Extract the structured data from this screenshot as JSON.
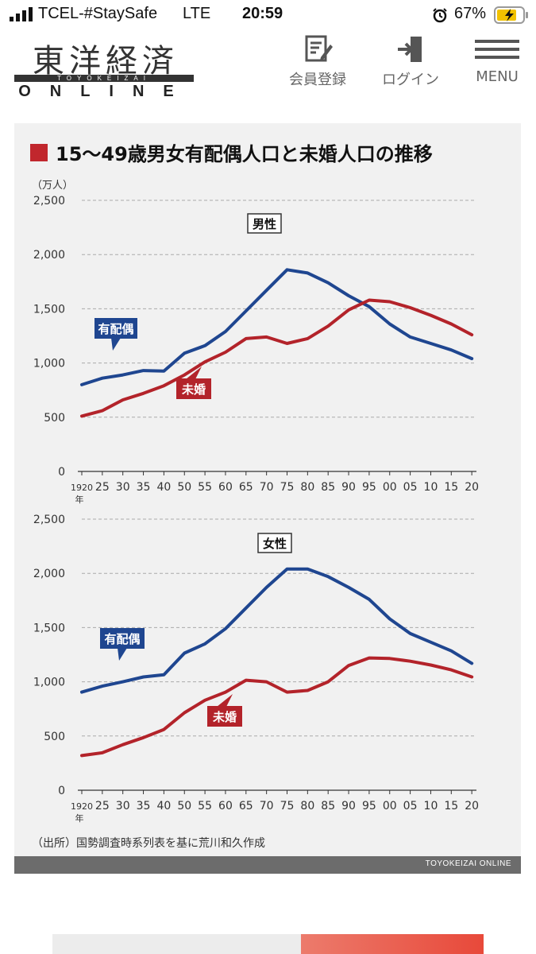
{
  "status_bar": {
    "carrier": "TCEL-#StaySafe",
    "network": "LTE",
    "time": "20:59",
    "battery": "67%"
  },
  "header": {
    "logo_kanji": "東洋経済",
    "logo_sub": "TOYOKEIZAI",
    "logo_online": "ONLINE",
    "register_label": "会員登録",
    "login_label": "ログイン",
    "menu_label": "MENU"
  },
  "colors": {
    "accent": "#c1272d",
    "married": "#1f4690",
    "unmarried": "#b3232a"
  },
  "chart_data": {
    "type": "line",
    "title": "15〜49歳男女有配偶人口と未婚人口の推移",
    "ylabel": "（万人）",
    "source": "（出所）国勢調査時系列表を基に荒川和久作成",
    "credit": "TOYOKEIZAI ONLINE",
    "x_tick_labels": [
      "1920",
      "25",
      "30",
      "35",
      "40",
      "50",
      "55",
      "60",
      "65",
      "70",
      "75",
      "80",
      "85",
      "90",
      "95",
      "00",
      "05",
      "10",
      "15",
      "20"
    ],
    "x_suffix": "年",
    "y_ticks": [
      "0",
      "500",
      "1,000",
      "1,500",
      "2,000",
      "2,500"
    ],
    "ylim": [
      0,
      2500
    ],
    "panels": [
      {
        "label": "男性",
        "series": [
          {
            "name": "有配偶",
            "values": [
              800,
              860,
              890,
              930,
              925,
              1090,
              1160,
              1290,
              1480,
              1670,
              1860,
              1830,
              1740,
              1620,
              1520,
              1360,
              1240,
              1180,
              1120,
              1040
            ]
          },
          {
            "name": "未婚",
            "values": [
              510,
              560,
              660,
              720,
              790,
              890,
              1010,
              1100,
              1225,
              1240,
              1180,
              1225,
              1340,
              1490,
              1580,
              1565,
              1510,
              1440,
              1360,
              1260
            ]
          }
        ]
      },
      {
        "label": "女性",
        "series": [
          {
            "name": "有配偶",
            "values": [
              905,
              960,
              1000,
              1045,
              1065,
              1265,
              1350,
              1490,
              1680,
              1870,
              2040,
              2040,
              1970,
              1870,
              1760,
              1580,
              1445,
              1365,
              1285,
              1170
            ]
          },
          {
            "name": "未婚",
            "values": [
              320,
              345,
              420,
              485,
              560,
              715,
              830,
              905,
              1015,
              1000,
              905,
              920,
              1000,
              1150,
              1220,
              1215,
              1190,
              1155,
              1110,
              1045
            ]
          }
        ]
      }
    ]
  }
}
